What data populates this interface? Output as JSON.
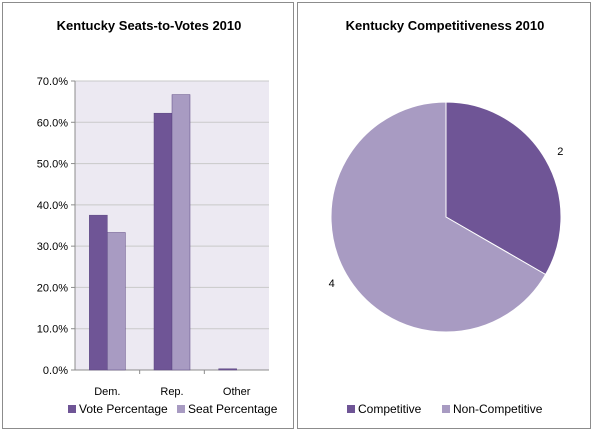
{
  "colors": {
    "vote": "#6f5596",
    "seat": "#a89bc2",
    "plot_bg": "#ece9f2",
    "grid": "#c9c9c9",
    "competitive": "#6f5596",
    "non_competitive": "#a89bc2"
  },
  "chart_data": [
    {
      "type": "bar",
      "title": "Kentucky Seats-to-Votes 2010",
      "categories": [
        "Dem.",
        "Rep.",
        "Other"
      ],
      "series": [
        {
          "name": "Vote Percentage",
          "values": [
            37.5,
            62.2,
            0.3
          ]
        },
        {
          "name": "Seat Percentage",
          "values": [
            33.3,
            66.7,
            0.0
          ]
        }
      ],
      "ylim": [
        0,
        70
      ],
      "yticks": [
        "0.0%",
        "10.0%",
        "20.0%",
        "30.0%",
        "40.0%",
        "50.0%",
        "60.0%",
        "70.0%"
      ],
      "legend": "bottom",
      "grid": true
    },
    {
      "type": "pie",
      "title": "Kentucky Competitiveness 2010",
      "labels": [
        "Competitive",
        "Non-Competitive"
      ],
      "values": [
        2,
        4
      ],
      "data_labels": [
        "2",
        "4"
      ],
      "legend": "bottom"
    }
  ]
}
